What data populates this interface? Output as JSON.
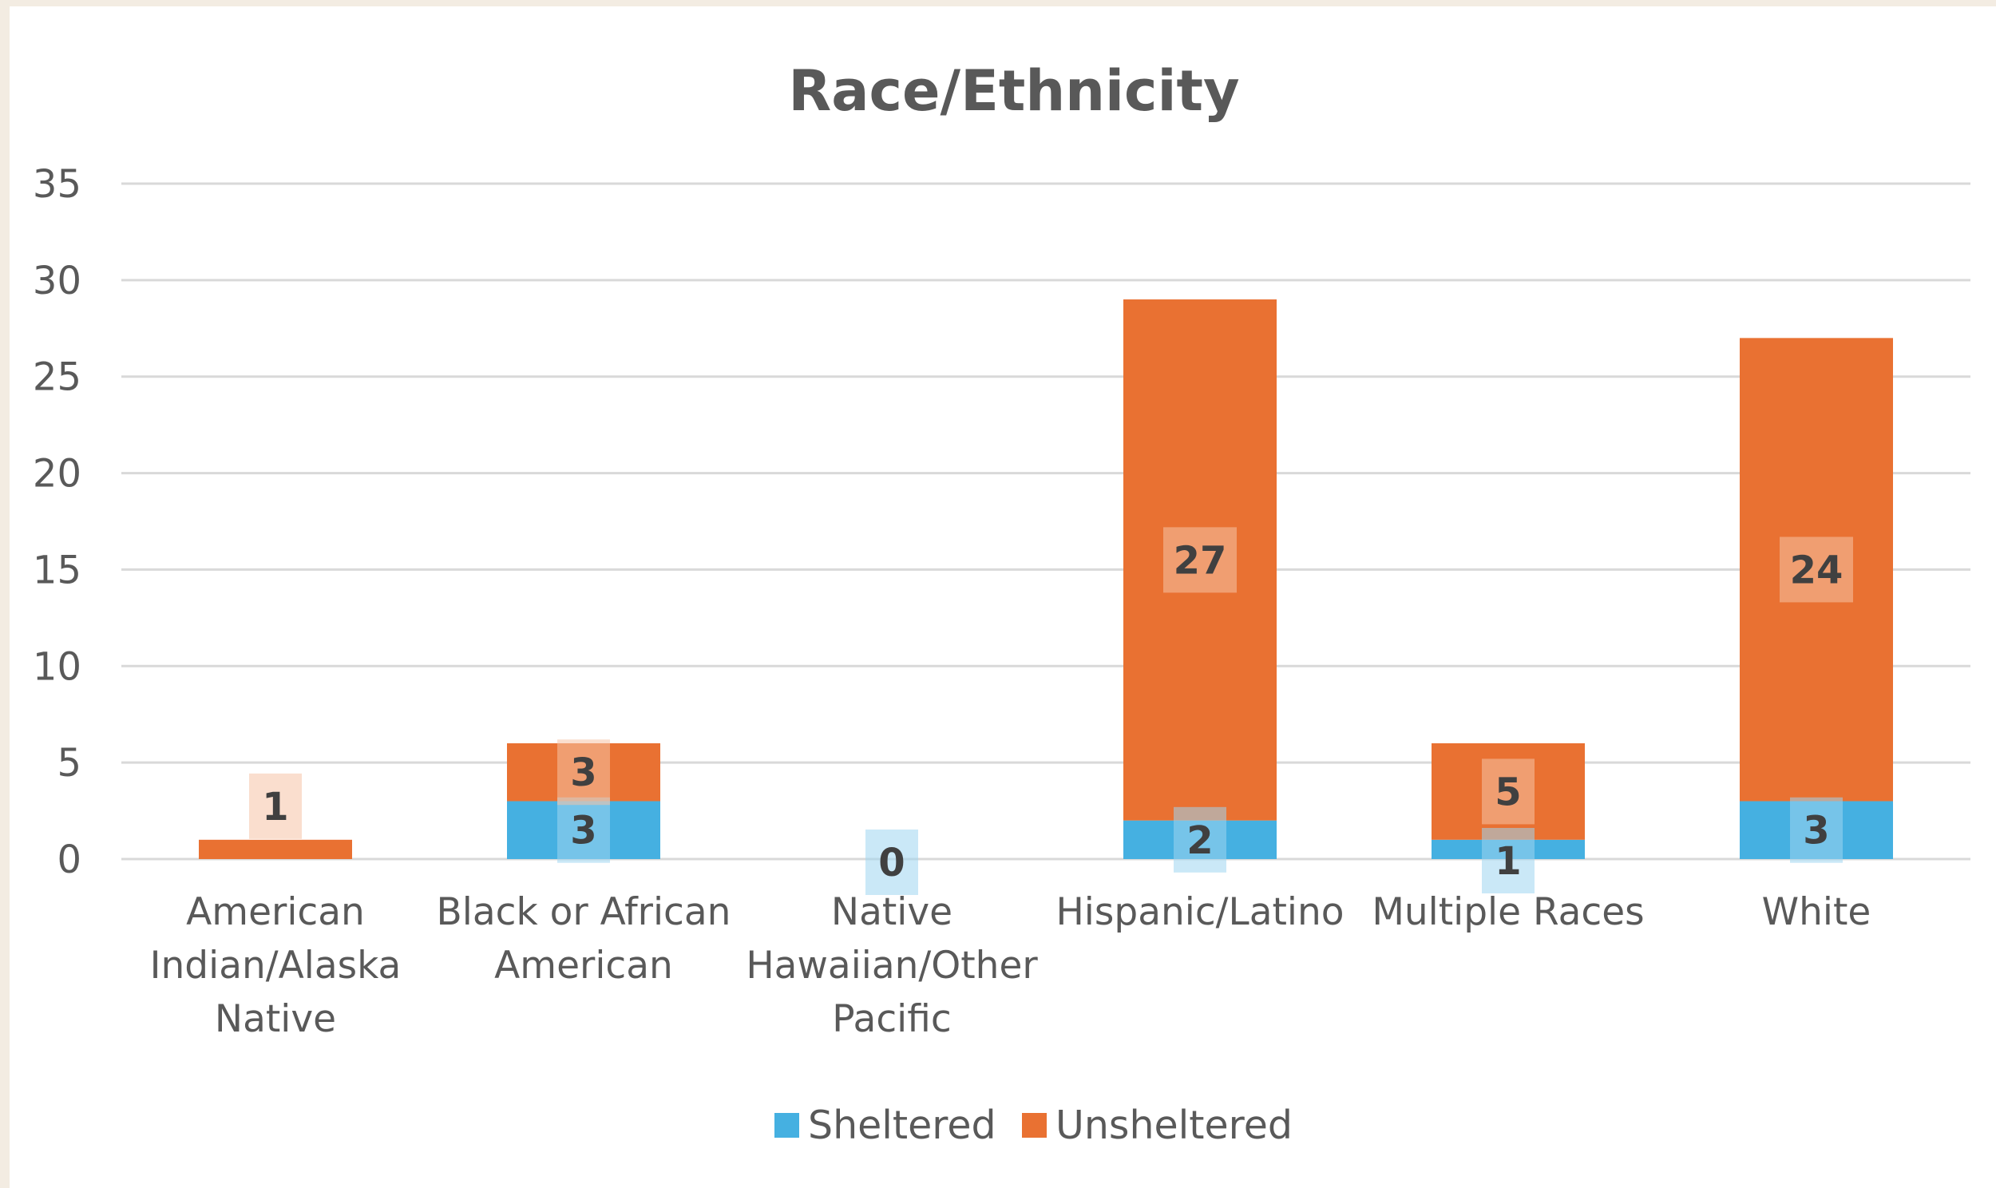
{
  "chart_data": {
    "type": "bar",
    "stacked": true,
    "title": "Race/Ethnicity",
    "xlabel": "",
    "ylabel": "",
    "ylim": [
      0,
      35
    ],
    "yticks": [
      0,
      5,
      10,
      15,
      20,
      25,
      30,
      35
    ],
    "grid": true,
    "legend_position": "bottom",
    "categories": [
      "American Indian/Alaska Native",
      "Black or African American",
      "Native Hawaiian/Other Pacific",
      "Hispanic/Latino",
      "Multiple Races",
      "White"
    ],
    "category_lines": [
      [
        "American",
        "Indian/Alaska",
        "Native"
      ],
      [
        "Black or African",
        "American"
      ],
      [
        "Native",
        "Hawaiian/Other",
        "Pacific"
      ],
      [
        "Hispanic/Latino"
      ],
      [
        "Multiple Races"
      ],
      [
        "White"
      ]
    ],
    "series": [
      {
        "name": "Sheltered",
        "color": "#45b0e1",
        "values": [
          0,
          3,
          0,
          2,
          1,
          3
        ],
        "labels": [
          "",
          "3",
          "0",
          "2",
          "1",
          "3"
        ]
      },
      {
        "name": "Unsheltered",
        "color": "#e97132",
        "values": [
          1,
          3,
          0,
          27,
          5,
          24
        ],
        "labels": [
          "1",
          "3",
          "",
          "27",
          "5",
          "24"
        ]
      }
    ]
  }
}
